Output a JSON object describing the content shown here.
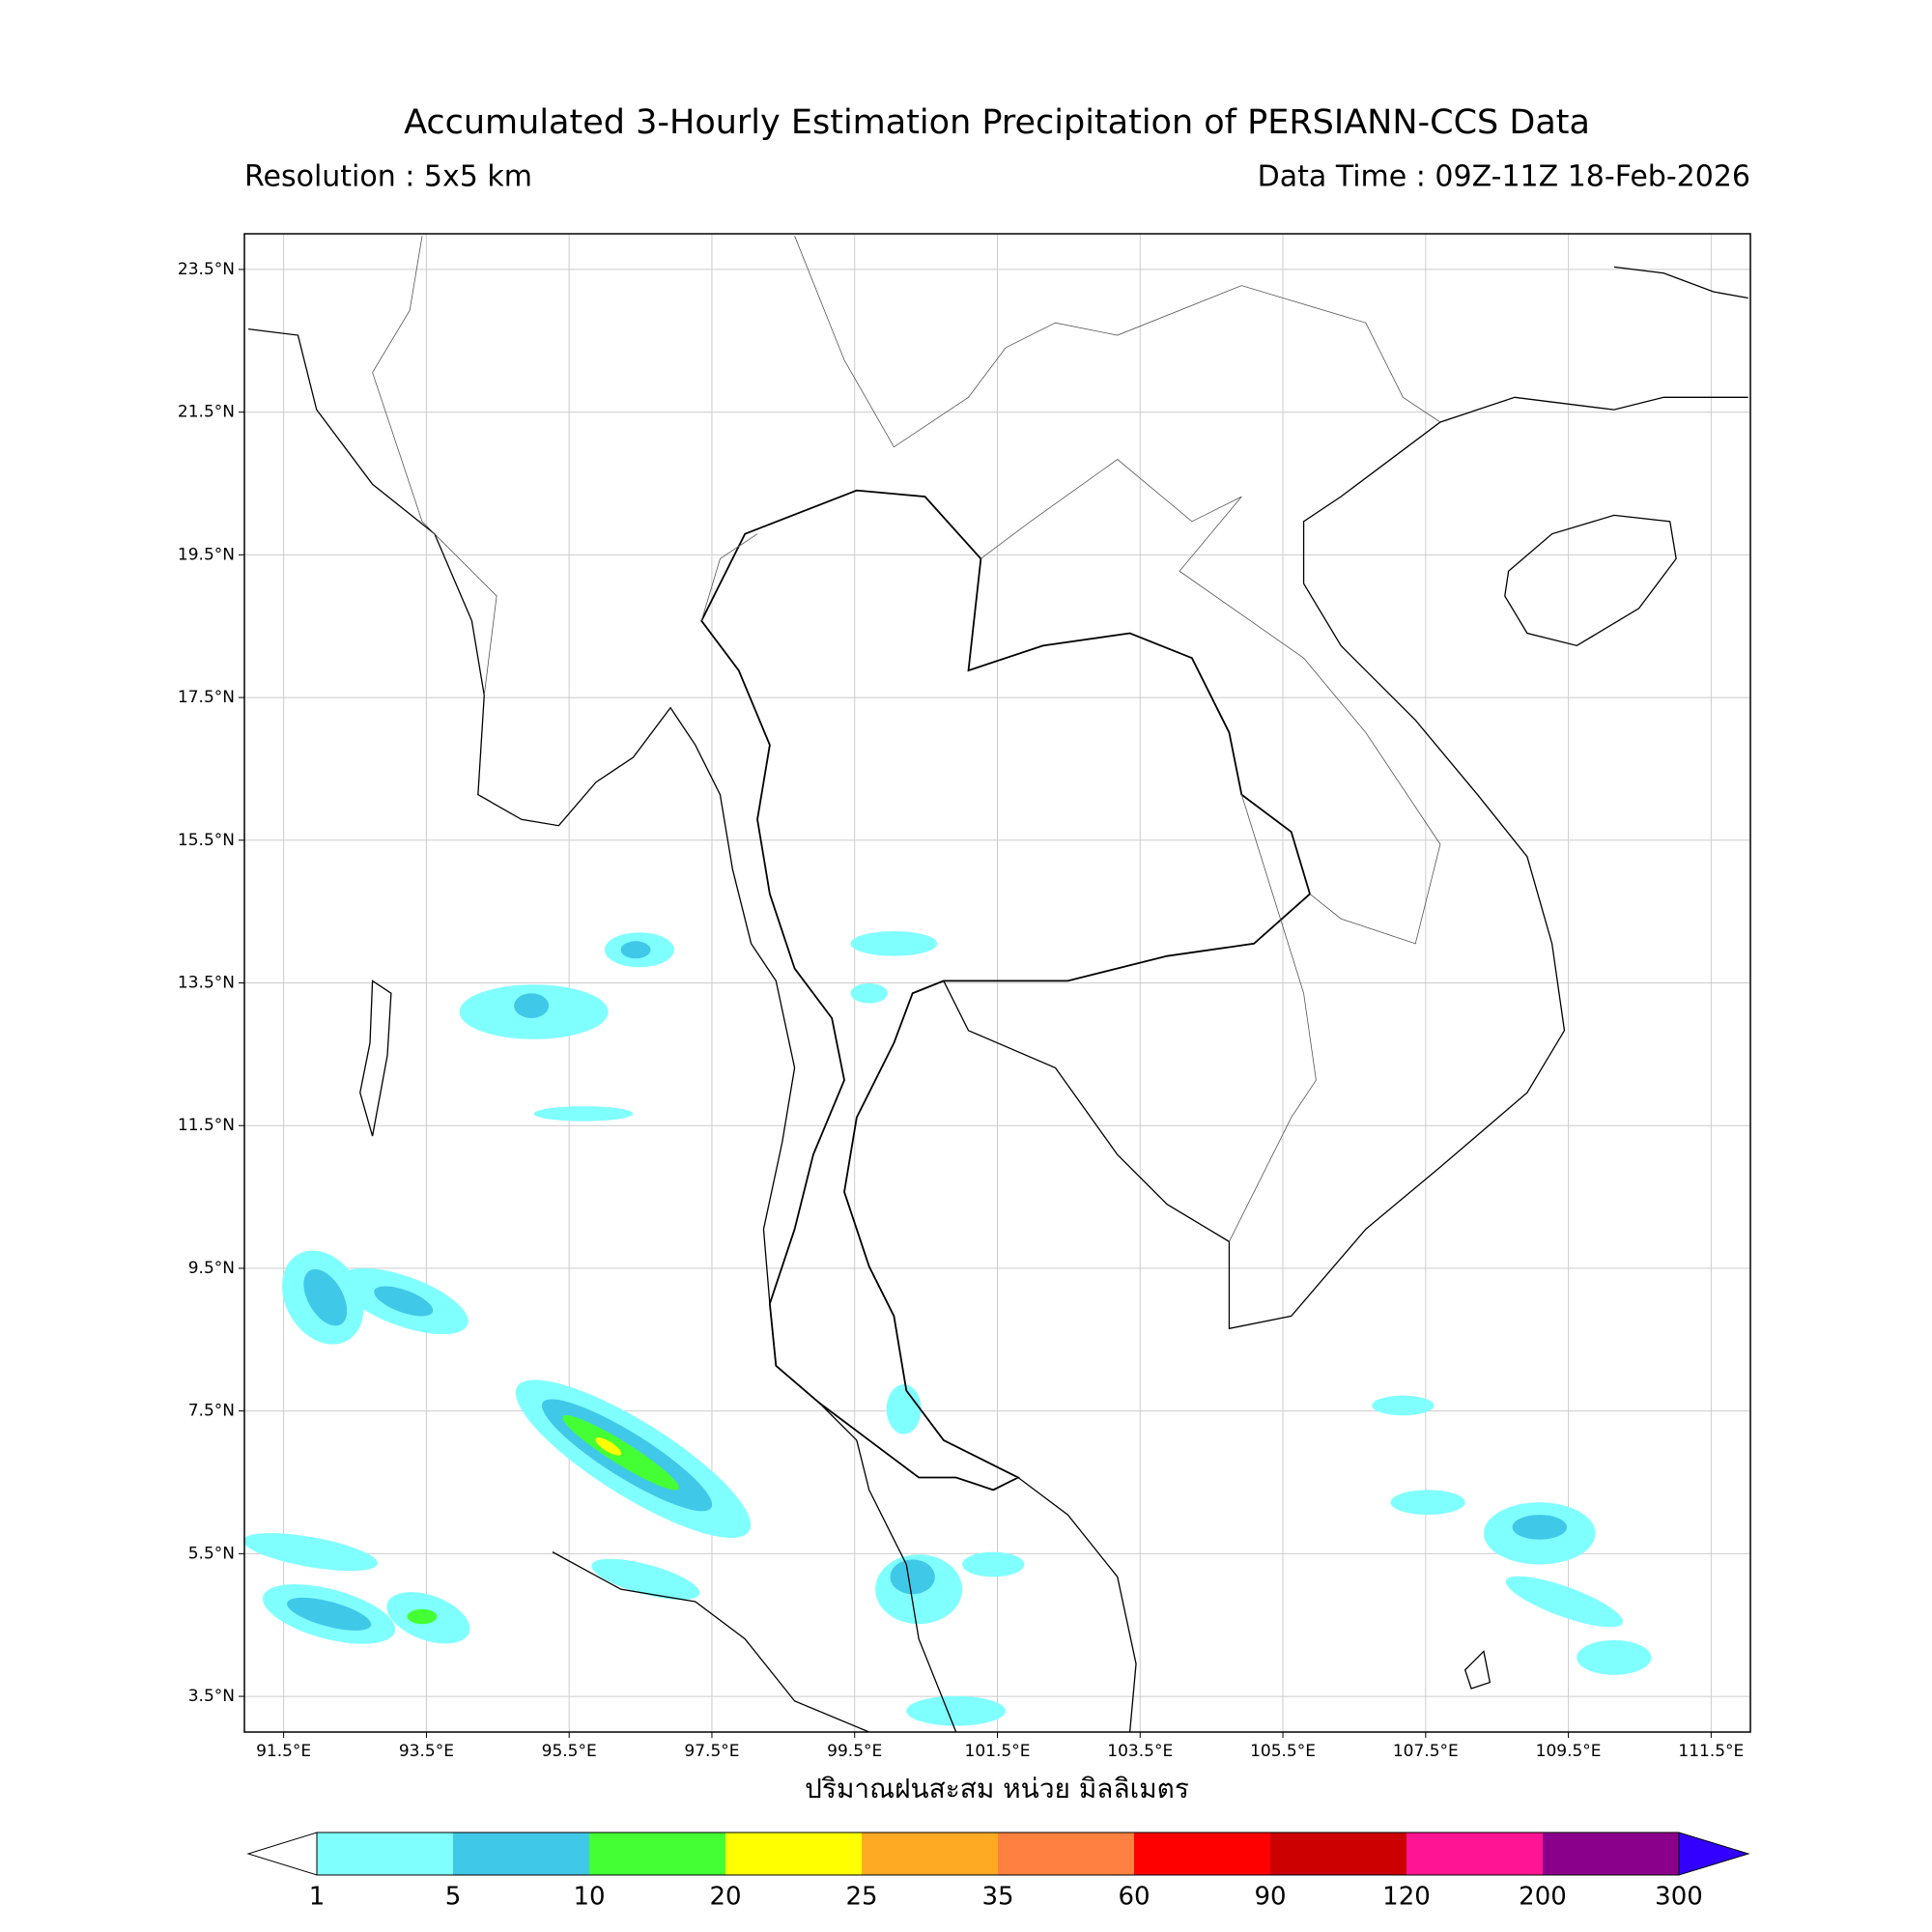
{
  "map": {
    "title": "Accumulated 3-Hourly Estimation Precipitation of PERSIANN-CCS Data",
    "resolution": "Resolution : 5x5 km",
    "data_time": "Data Time : 09Z-11Z 18-Feb-2026",
    "xlabel": "ปริมาณฝนสะสม หน่วย มิลลิเมตร",
    "xlim": [
      90.95,
      112.05
    ],
    "ylim": [
      3.0,
      24.0
    ],
    "xticks": [
      {
        "value": 91.5,
        "label": "91.5°E"
      },
      {
        "value": 93.5,
        "label": "93.5°E"
      },
      {
        "value": 95.5,
        "label": "95.5°E"
      },
      {
        "value": 97.5,
        "label": "97.5°E"
      },
      {
        "value": 99.5,
        "label": "99.5°E"
      },
      {
        "value": 101.5,
        "label": "101.5°E"
      },
      {
        "value": 103.5,
        "label": "103.5°E"
      },
      {
        "value": 105.5,
        "label": "105.5°E"
      },
      {
        "value": 107.5,
        "label": "107.5°E"
      },
      {
        "value": 109.5,
        "label": "109.5°E"
      },
      {
        "value": 111.5,
        "label": "111.5°E"
      }
    ],
    "yticks": [
      {
        "value": 23.5,
        "label": "23.5°N"
      },
      {
        "value": 21.5,
        "label": "21.5°N"
      },
      {
        "value": 19.5,
        "label": "19.5°N"
      },
      {
        "value": 17.5,
        "label": "17.5°N"
      },
      {
        "value": 15.5,
        "label": "15.5°N"
      },
      {
        "value": 13.5,
        "label": "13.5°N"
      },
      {
        "value": 11.5,
        "label": "11.5°N"
      },
      {
        "value": 9.5,
        "label": "9.5°N"
      },
      {
        "value": 7.5,
        "label": "7.5°N"
      },
      {
        "value": 5.5,
        "label": "5.5°N"
      },
      {
        "value": 3.5,
        "label": "3.5°N"
      }
    ],
    "grid": true,
    "colorbar": {
      "levels": [
        1,
        5,
        10,
        20,
        25,
        35,
        60,
        90,
        120,
        200,
        300
      ],
      "colors": [
        "#80ffff",
        "#40c8e8",
        "#44ff33",
        "#ffff00",
        "#ffaa22",
        "#ff8040",
        "#ff0000",
        "#cc0000",
        "#ff1493",
        "#8b008b"
      ],
      "under_color": "#ffffff",
      "over_color": "#3300ff"
    }
  }
}
